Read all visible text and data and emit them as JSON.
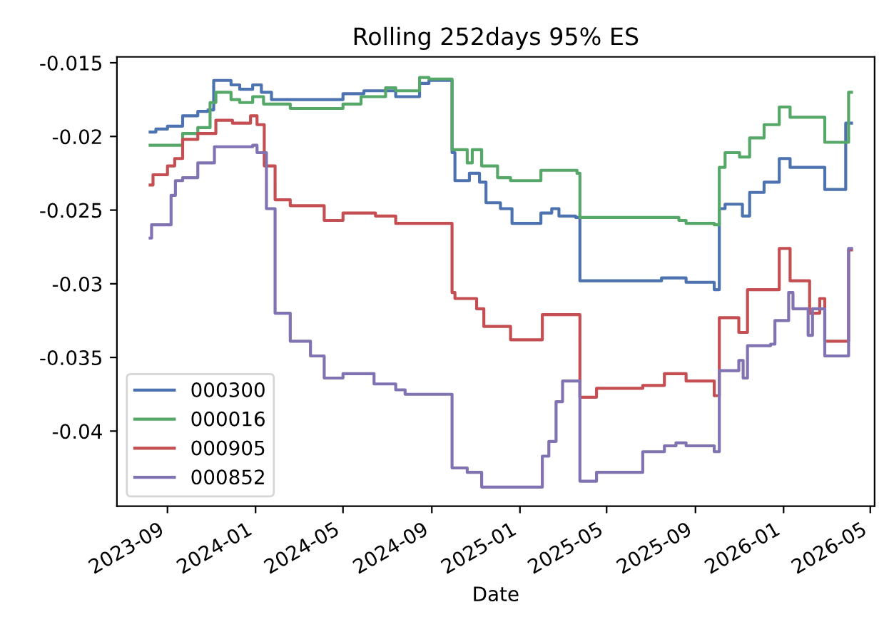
{
  "chart_data": {
    "type": "step",
    "title": "Rolling 252days 95% ES",
    "xlabel": "Date",
    "xlim": [
      "2023-06-23",
      "2026-05-07"
    ],
    "ylim": [
      -0.0451,
      -0.0146
    ],
    "xticks": [
      {
        "value": "2023-09-01",
        "label": "2023-09"
      },
      {
        "value": "2024-01-01",
        "label": "2024-01"
      },
      {
        "value": "2024-05-01",
        "label": "2024-05"
      },
      {
        "value": "2024-09-01",
        "label": "2024-09"
      },
      {
        "value": "2025-01-01",
        "label": "2025-01"
      },
      {
        "value": "2025-05-01",
        "label": "2025-05"
      },
      {
        "value": "2025-09-01",
        "label": "2025-09"
      },
      {
        "value": "2026-01-01",
        "label": "2026-01"
      },
      {
        "value": "2026-05-01",
        "label": "2026-05"
      }
    ],
    "yticks": [
      -0.015,
      -0.02,
      -0.025,
      -0.03,
      -0.035,
      -0.04
    ],
    "grid": false,
    "legend": "bottom left",
    "line_style": "solid",
    "series": [
      {
        "name": "000300",
        "color": "#4c72b0",
        "x": [
          "2023-08-08",
          "2023-08-16",
          "2023-09-01",
          "2023-09-22",
          "2023-10-13",
          "2023-10-27",
          "2023-11-04",
          "2023-11-28",
          "2023-12-10",
          "2023-12-28",
          "2024-01-09",
          "2024-01-23",
          "2024-05-01",
          "2024-05-30",
          "2024-07-13",
          "2024-08-15",
          "2024-08-28",
          "2024-09-29",
          "2024-10-03",
          "2024-10-23",
          "2024-11-06",
          "2024-11-15",
          "2024-12-05",
          "2024-12-21",
          "2025-01-30",
          "2025-02-14",
          "2025-02-24",
          "2025-03-19",
          "2025-03-25",
          "2025-07-16",
          "2025-08-19",
          "2025-09-27",
          "2025-10-04",
          "2025-10-12",
          "2025-11-05",
          "2025-11-15",
          "2025-12-05",
          "2025-12-26",
          "2026-01-10",
          "2026-02-27",
          "2026-03-28",
          "2026-04-05"
        ],
        "values": [
          -0.0197,
          -0.0195,
          -0.0193,
          -0.0186,
          -0.0183,
          -0.0182,
          -0.0162,
          -0.0165,
          -0.0168,
          -0.0165,
          -0.017,
          -0.0175,
          -0.0171,
          -0.0169,
          -0.0173,
          -0.0164,
          -0.0162,
          -0.0211,
          -0.023,
          -0.0225,
          -0.0231,
          -0.0245,
          -0.0249,
          -0.0259,
          -0.0252,
          -0.0249,
          -0.0254,
          -0.0255,
          -0.0298,
          -0.0296,
          -0.0299,
          -0.0304,
          -0.0249,
          -0.0246,
          -0.0254,
          -0.0238,
          -0.0231,
          -0.0215,
          -0.0221,
          -0.0236,
          -0.0191,
          -0.0191
        ]
      },
      {
        "name": "000016",
        "color": "#55a868",
        "x": [
          "2023-08-08",
          "2023-09-22",
          "2023-10-13",
          "2023-10-30",
          "2023-11-07",
          "2023-11-28",
          "2023-12-10",
          "2023-12-28",
          "2024-01-12",
          "2024-02-18",
          "2024-05-01",
          "2024-05-26",
          "2024-06-29",
          "2024-07-13",
          "2024-08-15",
          "2024-08-28",
          "2024-09-29",
          "2024-10-20",
          "2024-10-27",
          "2024-11-09",
          "2024-12-01",
          "2024-12-19",
          "2025-01-30",
          "2025-03-21",
          "2025-03-25",
          "2025-08-09",
          "2025-08-19",
          "2025-09-27",
          "2025-10-04",
          "2025-10-12",
          "2025-11-01",
          "2025-11-15",
          "2025-12-05",
          "2025-12-26",
          "2026-01-10",
          "2026-02-27",
          "2026-04-01",
          "2026-04-05"
        ],
        "values": [
          -0.0206,
          -0.0198,
          -0.0194,
          -0.0177,
          -0.017,
          -0.0175,
          -0.0177,
          -0.0173,
          -0.0178,
          -0.0181,
          -0.0178,
          -0.0173,
          -0.0167,
          -0.0169,
          -0.016,
          -0.0161,
          -0.0209,
          -0.0218,
          -0.0209,
          -0.022,
          -0.0228,
          -0.023,
          -0.0223,
          -0.0225,
          -0.0255,
          -0.0257,
          -0.0259,
          -0.026,
          -0.0221,
          -0.0211,
          -0.0214,
          -0.0201,
          -0.0192,
          -0.018,
          -0.0187,
          -0.0204,
          -0.017,
          -0.017
        ]
      },
      {
        "name": "000905",
        "color": "#c44e52",
        "x": [
          "2023-08-08",
          "2023-08-12",
          "2023-09-01",
          "2023-09-11",
          "2023-09-22",
          "2023-10-13",
          "2023-11-07",
          "2023-11-30",
          "2023-12-25",
          "2024-01-03",
          "2024-01-13",
          "2024-01-28",
          "2024-02-18",
          "2024-04-05",
          "2024-05-01",
          "2024-06-15",
          "2024-07-13",
          "2024-09-29",
          "2024-10-03",
          "2024-11-02",
          "2024-11-12",
          "2024-12-19",
          "2025-02-01",
          "2025-03-25",
          "2025-04-17",
          "2025-06-20",
          "2025-07-20",
          "2025-08-19",
          "2025-09-27",
          "2025-10-04",
          "2025-10-31",
          "2025-11-12",
          "2025-12-26",
          "2026-01-10",
          "2026-02-06",
          "2026-02-20",
          "2026-02-27",
          "2026-04-01",
          "2026-04-05"
        ],
        "values": [
          -0.0233,
          -0.0226,
          -0.022,
          -0.0215,
          -0.0202,
          -0.0198,
          -0.0189,
          -0.0191,
          -0.0186,
          -0.0192,
          -0.022,
          -0.0243,
          -0.0247,
          -0.0257,
          -0.0252,
          -0.0254,
          -0.0259,
          -0.0306,
          -0.031,
          -0.0317,
          -0.0329,
          -0.0338,
          -0.0321,
          -0.0377,
          -0.0371,
          -0.0369,
          -0.0361,
          -0.0366,
          -0.0376,
          -0.0323,
          -0.0333,
          -0.0304,
          -0.0276,
          -0.0298,
          -0.032,
          -0.031,
          -0.0339,
          -0.0277,
          -0.0277
        ]
      },
      {
        "name": "000852",
        "color": "#8172b2",
        "x": [
          "2023-08-08",
          "2023-08-10",
          "2023-09-06",
          "2023-09-12",
          "2023-09-22",
          "2023-10-13",
          "2023-11-05",
          "2023-12-28",
          "2024-01-03",
          "2024-01-16",
          "2024-01-28",
          "2024-02-18",
          "2024-03-17",
          "2024-04-05",
          "2024-05-01",
          "2024-06-13",
          "2024-07-13",
          "2024-07-26",
          "2024-09-29",
          "2024-10-20",
          "2024-11-09",
          "2025-02-01",
          "2025-02-10",
          "2025-02-20",
          "2025-03-01",
          "2025-03-25",
          "2025-04-17",
          "2025-06-20",
          "2025-07-20",
          "2025-08-05",
          "2025-08-19",
          "2025-09-27",
          "2025-10-04",
          "2025-10-31",
          "2025-11-06",
          "2025-11-12",
          "2025-12-14",
          "2025-12-20",
          "2026-01-08",
          "2026-01-14",
          "2026-02-04",
          "2026-02-10",
          "2026-02-27",
          "2026-04-01",
          "2026-04-05"
        ],
        "values": [
          -0.0269,
          -0.026,
          -0.024,
          -0.023,
          -0.0228,
          -0.0218,
          -0.0207,
          -0.0206,
          -0.0211,
          -0.0249,
          -0.032,
          -0.0339,
          -0.0349,
          -0.0364,
          -0.0361,
          -0.0368,
          -0.0372,
          -0.0375,
          -0.0425,
          -0.0428,
          -0.0438,
          -0.0417,
          -0.0407,
          -0.038,
          -0.0366,
          -0.0434,
          -0.0428,
          -0.0414,
          -0.041,
          -0.0408,
          -0.041,
          -0.0414,
          -0.0359,
          -0.0352,
          -0.0364,
          -0.0342,
          -0.0341,
          -0.0325,
          -0.0306,
          -0.0317,
          -0.0335,
          -0.0317,
          -0.0349,
          -0.0276,
          -0.0276
        ]
      }
    ]
  }
}
